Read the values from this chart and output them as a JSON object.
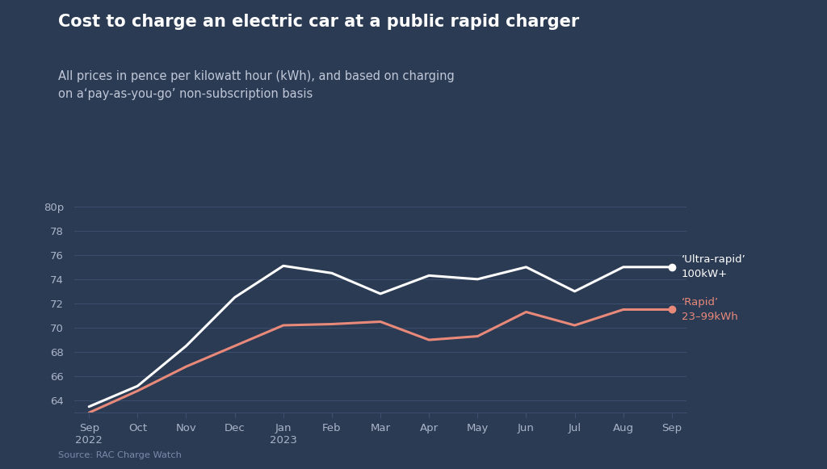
{
  "title": "Cost to charge an electric car at a public rapid charger",
  "subtitle": "All prices in pence per kilowatt hour (kWh), and based on charging\non a‘pay-as-you-go’ non-subscription basis",
  "source": "Source: RAC Charge Watch",
  "background_color": "#2c3b54",
  "plot_background_color": "#2c3b54",
  "x_labels": [
    "Sep\n2022",
    "Oct",
    "Nov",
    "Dec",
    "Jan\n2023",
    "Feb",
    "Mar",
    "Apr",
    "May",
    "Jun",
    "Jul",
    "Aug",
    "Sep"
  ],
  "ultra_rapid": [
    63.5,
    65.2,
    68.5,
    72.5,
    75.1,
    74.5,
    72.8,
    74.3,
    74.0,
    75.0,
    73.0,
    75.0,
    75.0
  ],
  "rapid": [
    63.0,
    64.8,
    66.8,
    68.5,
    70.2,
    70.3,
    70.5,
    69.0,
    69.3,
    71.3,
    70.2,
    71.5,
    71.5
  ],
  "ultra_rapid_color": "#ffffff",
  "rapid_color": "#e8897a",
  "line_width": 2.2,
  "ylim": [
    63,
    80
  ],
  "yticks": [
    64,
    66,
    68,
    70,
    72,
    74,
    76,
    78,
    80
  ],
  "ytick_labels": [
    "64",
    "66",
    "68",
    "70",
    "72",
    "74",
    "76",
    "78",
    "80p"
  ],
  "grid_color": "#3d4f6e",
  "tick_color": "#aab4c8",
  "title_color": "#ffffff",
  "subtitle_color": "#c0c8d8",
  "source_color": "#7a8aaa",
  "title_fontsize": 15,
  "subtitle_fontsize": 10.5,
  "annotation_ultra": "‘Ultra-rapid’\n100kW+",
  "annotation_rapid": "‘Rapid’\n23–99kWh",
  "annotation_ultra_color": "#ffffff",
  "annotation_rapid_color": "#e8897a"
}
